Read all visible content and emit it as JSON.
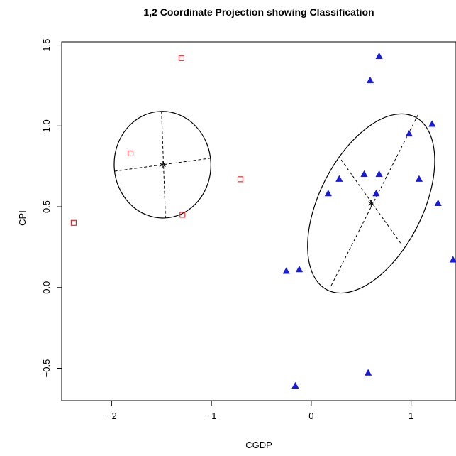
{
  "chart_data": {
    "type": "scatter",
    "title": "1,2 Coordinate Projection showing Classification",
    "xlabel": "CGDP",
    "ylabel": "CPI",
    "xlim": [
      -2.5,
      1.45
    ],
    "ylim": [
      -0.7,
      1.52
    ],
    "xticks": [
      -2,
      -1,
      0,
      1
    ],
    "yticks": [
      -0.5,
      0.0,
      0.5,
      1.0,
      1.5
    ],
    "xtick_labels": [
      "−2",
      "−1",
      "0",
      "1"
    ],
    "ytick_labels": [
      "−0.5",
      "0.0",
      "0.5",
      "1.0",
      "1.5"
    ],
    "grid": false,
    "series": [
      {
        "marker": "open-square",
        "color": "#e8181e",
        "points": [
          {
            "x": -1.3,
            "y": 1.42
          },
          {
            "x": -1.81,
            "y": 0.83
          },
          {
            "x": -0.71,
            "y": 0.67
          },
          {
            "x": -1.29,
            "y": 0.45
          },
          {
            "x": -2.38,
            "y": 0.4
          }
        ]
      },
      {
        "marker": "filled-triangle",
        "color": "#1a1adc",
        "points": [
          {
            "x": 0.68,
            "y": 1.43
          },
          {
            "x": 0.59,
            "y": 1.28
          },
          {
            "x": 1.21,
            "y": 1.01
          },
          {
            "x": 0.98,
            "y": 0.95
          },
          {
            "x": 0.28,
            "y": 0.67
          },
          {
            "x": 0.53,
            "y": 0.7
          },
          {
            "x": 0.68,
            "y": 0.7
          },
          {
            "x": 1.08,
            "y": 0.67
          },
          {
            "x": 0.17,
            "y": 0.58
          },
          {
            "x": 0.65,
            "y": 0.58
          },
          {
            "x": 1.27,
            "y": 0.52
          },
          {
            "x": 1.42,
            "y": 0.17
          },
          {
            "x": -0.12,
            "y": 0.11
          },
          {
            "x": -0.25,
            "y": 0.1
          },
          {
            "x": 0.57,
            "y": -0.53
          },
          {
            "x": -0.16,
            "y": -0.61
          }
        ]
      }
    ],
    "clusters": [
      {
        "center": {
          "x": -1.49,
          "y": 0.76
        },
        "ellipse_color": "#000000",
        "major_axis": [
          {
            "x": -1.5,
            "y": 1.09
          },
          {
            "x": -1.46,
            "y": 0.43
          }
        ],
        "minor_axis": [
          {
            "x": -1.97,
            "y": 0.72
          },
          {
            "x": -1.01,
            "y": 0.8
          }
        ]
      },
      {
        "center": {
          "x": 0.6,
          "y": 0.52
        },
        "ellipse_color": "#000000",
        "major_axis": [
          {
            "x": 1.07,
            "y": 1.07
          },
          {
            "x": 0.19,
            "y": 0.0
          }
        ],
        "minor_axis": [
          {
            "x": 0.3,
            "y": 0.79
          },
          {
            "x": 0.9,
            "y": 0.27
          }
        ]
      }
    ]
  }
}
